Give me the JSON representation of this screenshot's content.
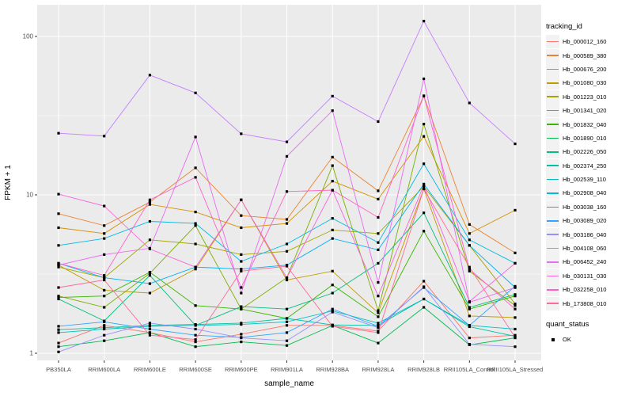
{
  "chart_data": {
    "type": "line",
    "title": "",
    "xlabel": "sample_name",
    "ylabel": "FPKM + 1",
    "y_scale": "log10",
    "y_ticks": [
      1,
      10,
      100
    ],
    "y_minor_ticks": [
      3.162,
      31.62
    ],
    "ylim": [
      0.95,
      170
    ],
    "grid": "on",
    "panel_bg": "#ebebeb",
    "gridline_color": "#ffffff",
    "tick_label_color": "#4d4d4d",
    "point_marker": "black-square",
    "categories": [
      "PB350LA",
      "RRIM600LA",
      "RRIM600LE",
      "RRIM600SE",
      "RRIM600PE",
      "RRIM901LA",
      "RRIM928BA",
      "RRIM928LA",
      "RRIM928LB",
      "RRII105LA_Control",
      "RRII105LA_Stressed"
    ],
    "legend": {
      "title": "tracking_id",
      "position": "right"
    },
    "quant_status": {
      "title": "quant_status",
      "items": [
        {
          "label": "OK",
          "symbol": "black-square"
        }
      ]
    },
    "series": [
      {
        "name": "Hb_000012_160",
        "color": "#F8766D",
        "values": [
          1.16,
          1.5,
          1.35,
          1.18,
          1.32,
          1.5,
          1.5,
          1.38,
          2.85,
          1.25,
          1.3
        ]
      },
      {
        "name": "Hb_000589_380",
        "color": "#EA8331",
        "values": [
          7.6,
          6.4,
          9.0,
          14.8,
          7.4,
          7.0,
          17.3,
          10.6,
          42,
          6.5,
          4.3
        ]
      },
      {
        "name": "Hb_000676_200",
        "color": "#D89000",
        "values": [
          6.2,
          5.7,
          8.7,
          7.8,
          6.2,
          6.6,
          12.2,
          9.4,
          23.4,
          5.7,
          8.0
        ]
      },
      {
        "name": "Hb_001080_030",
        "color": "#C09B00",
        "values": [
          3.6,
          2.5,
          2.4,
          3.4,
          9.3,
          2.9,
          3.3,
          1.8,
          10.9,
          1.72,
          1.68
        ]
      },
      {
        "name": "Hb_001223_010",
        "color": "#A3A500",
        "values": [
          3.5,
          3.0,
          5.2,
          4.9,
          4.2,
          4.4,
          6.0,
          5.7,
          11.3,
          4.8,
          2.05
        ]
      },
      {
        "name": "Hb_001341_020",
        "color": "#7CAE00",
        "values": [
          2.3,
          1.95,
          3.2,
          6.4,
          1.9,
          3.0,
          15.3,
          1.86,
          28,
          3.3,
          2.0
        ]
      },
      {
        "name": "Hb_001832_040",
        "color": "#39B600",
        "values": [
          2.25,
          2.3,
          3.25,
          2.0,
          1.9,
          1.66,
          2.7,
          1.7,
          5.9,
          1.9,
          2.3
        ]
      },
      {
        "name": "Hb_001890_010",
        "color": "#00BB4E",
        "values": [
          1.1,
          1.2,
          1.35,
          1.1,
          1.18,
          1.12,
          1.5,
          1.16,
          1.95,
          1.13,
          1.25
        ]
      },
      {
        "name": "Hb_002226_050",
        "color": "#00BF7D",
        "values": [
          2.2,
          1.6,
          3.1,
          1.5,
          1.97,
          1.9,
          2.4,
          3.7,
          7.7,
          1.95,
          2.35
        ]
      },
      {
        "name": "Hb_002374_250",
        "color": "#00C1A3",
        "values": [
          1.41,
          1.45,
          1.5,
          1.52,
          1.55,
          1.66,
          1.51,
          1.5,
          2.2,
          1.47,
          1.28
        ]
      },
      {
        "name": "Hb_002539_110",
        "color": "#00BFC4",
        "values": [
          1.35,
          1.42,
          1.48,
          1.5,
          1.52,
          1.58,
          1.85,
          1.55,
          2.2,
          1.5,
          1.42
        ]
      },
      {
        "name": "Hb_002908_040",
        "color": "#00BAE0",
        "values": [
          4.8,
          5.3,
          6.8,
          6.6,
          3.8,
          4.9,
          7.1,
          5.0,
          15.7,
          5.2,
          3.7
        ]
      },
      {
        "name": "Hb_003038_160",
        "color": "#00B0F6",
        "values": [
          3.7,
          3.0,
          2.75,
          3.5,
          3.4,
          3.6,
          5.3,
          4.5,
          11.7,
          4.8,
          2.6
        ]
      },
      {
        "name": "Hb_003089_020",
        "color": "#35A2FF",
        "values": [
          1.48,
          1.58,
          1.42,
          1.3,
          1.26,
          1.35,
          1.9,
          1.48,
          2.6,
          1.5,
          2.65
        ]
      },
      {
        "name": "Hb_003186_040",
        "color": "#9590FF",
        "values": [
          1.02,
          1.3,
          1.55,
          1.42,
          1.25,
          1.2,
          1.82,
          1.45,
          2.63,
          1.14,
          1.1
        ]
      },
      {
        "name": "Hb_004108_060",
        "color": "#C77CFF",
        "values": [
          24.5,
          23.5,
          57,
          44,
          24.3,
          21.6,
          42,
          29,
          125,
          38,
          21
        ]
      },
      {
        "name": "Hb_006452_240",
        "color": "#E76BF3",
        "values": [
          3.6,
          4.2,
          4.6,
          23.2,
          2.4,
          17.5,
          34,
          2.8,
          54,
          2.1,
          2.6
        ]
      },
      {
        "name": "Hb_030131_030",
        "color": "#FA62DB",
        "values": [
          10.1,
          8.5,
          4.55,
          3.5,
          9.3,
          3.0,
          10.7,
          2.3,
          11.5,
          2.12,
          3.7
        ]
      },
      {
        "name": "Hb_032258_010",
        "color": "#FF61C9",
        "values": [
          3.7,
          3.1,
          9.3,
          12.9,
          2.6,
          10.5,
          10.7,
          7.2,
          42.2,
          3.4,
          1.9
        ]
      },
      {
        "name": "Hb_173808_010",
        "color": "#FF6A98",
        "values": [
          2.6,
          2.9,
          1.3,
          1.22,
          3.3,
          3.55,
          1.48,
          1.35,
          10.9,
          3.5,
          1.26
        ]
      }
    ]
  }
}
